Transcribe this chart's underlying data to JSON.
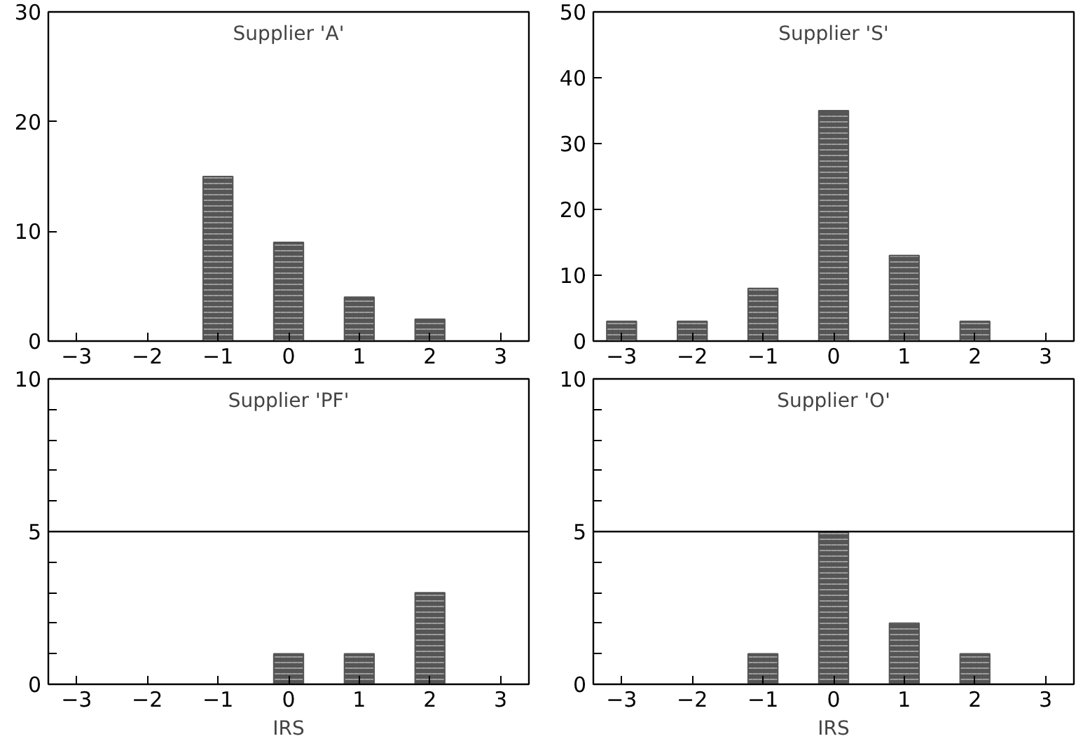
{
  "chart_data": [
    {
      "type": "bar",
      "title": "Supplier 'A'",
      "x": [
        -1,
        0,
        1,
        2
      ],
      "values": [
        15,
        9,
        4,
        2
      ],
      "color": "#555555",
      "xlim": [
        -3.4,
        3.4
      ],
      "ylim": [
        0,
        30
      ],
      "xticks": [
        -3,
        -2,
        -1,
        0,
        1,
        2,
        3
      ],
      "yticks": [
        0,
        10,
        20,
        30
      ],
      "grid": false
    },
    {
      "type": "bar",
      "title": "Supplier 'S'",
      "x": [
        -3,
        -2,
        -1,
        0,
        1,
        2
      ],
      "values": [
        3,
        3,
        8,
        35,
        13,
        3
      ],
      "color": "#555555",
      "xlim": [
        -3.4,
        3.4
      ],
      "ylim": [
        0,
        50
      ],
      "xticks": [
        -3,
        -2,
        -1,
        0,
        1,
        2,
        3
      ],
      "yticks": [
        0,
        10,
        20,
        30,
        40,
        50
      ],
      "grid": false
    },
    {
      "type": "bar",
      "title": "Supplier 'PF'",
      "xlabel": "IRS",
      "x": [
        0,
        1,
        2
      ],
      "values": [
        1,
        1,
        3
      ],
      "color": "#555555",
      "xlim": [
        -3.4,
        3.4
      ],
      "ylim": [
        0,
        10
      ],
      "xticks": [
        -3,
        -2,
        -1,
        0,
        1,
        2,
        3
      ],
      "yticks": [
        0,
        {
          "value": 1,
          "label": null
        },
        {
          "value": 2,
          "label": null
        },
        {
          "value": 3,
          "label": null
        },
        {
          "value": 4,
          "label": null
        },
        5,
        {
          "value": 6,
          "label": null
        },
        {
          "value": 7,
          "label": null
        },
        {
          "value": 8,
          "label": null
        },
        {
          "value": 9,
          "label": null
        },
        10
      ],
      "grid": false,
      "ref_lines": [
        {
          "axis": "y",
          "value": 5
        }
      ]
    },
    {
      "type": "bar",
      "title": "Supplier 'O'",
      "xlabel": "IRS",
      "x": [
        -1,
        0,
        1,
        2
      ],
      "values": [
        1,
        5,
        2,
        1
      ],
      "color": "#555555",
      "xlim": [
        -3.4,
        3.4
      ],
      "ylim": [
        0,
        10
      ],
      "xticks": [
        -3,
        -2,
        -1,
        0,
        1,
        2,
        3
      ],
      "yticks": [
        0,
        {
          "value": 1,
          "label": null
        },
        {
          "value": 2,
          "label": null
        },
        {
          "value": 3,
          "label": null
        },
        {
          "value": 4,
          "label": null
        },
        5,
        {
          "value": 6,
          "label": null
        },
        {
          "value": 7,
          "label": null
        },
        {
          "value": 8,
          "label": null
        },
        {
          "value": 9,
          "label": null
        },
        10
      ],
      "grid": false,
      "ref_lines": [
        {
          "axis": "y",
          "value": 5
        }
      ]
    }
  ]
}
